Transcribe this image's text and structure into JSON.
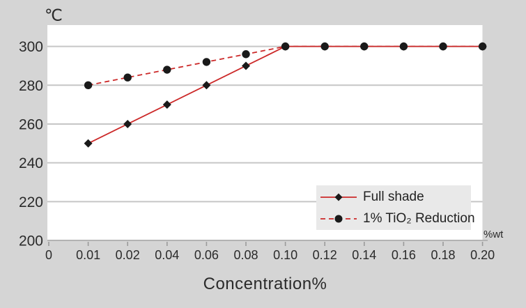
{
  "page": {
    "background_color": "#d5d5d5",
    "plot_background_color": "#ffffff",
    "grid_color": "#c6c6c6",
    "axis_color": "#b3b3b3",
    "tick_color": "#9a9a9a",
    "text_color": "#2a2a2a",
    "legend_background_color": "#e9e9e9"
  },
  "chart_data": {
    "type": "line",
    "title": "",
    "xlabel": "Concentration%",
    "x_axis_unit": "%wt",
    "y_axis_unit": "℃",
    "categories": [
      "0",
      "0.01",
      "0.02",
      "0.04",
      "0.06",
      "0.08",
      "0.10",
      "0.12",
      "0.14",
      "0.16",
      "0.18",
      "0.20"
    ],
    "y_ticks": [
      200,
      220,
      240,
      260,
      280,
      300
    ],
    "ylim": [
      200,
      311
    ],
    "grid": true,
    "legend_position": "inside-bottom-right",
    "series": [
      {
        "name": "Full shade",
        "line_style": "solid",
        "line_color": "#cc2929",
        "marker": "diamond",
        "marker_color": "#1a1a1a",
        "values": [
          null,
          250,
          260,
          270,
          280,
          290,
          300,
          300,
          300,
          300,
          300,
          300
        ]
      },
      {
        "name": "1% TiO₂ Reduction",
        "line_style": "dashed",
        "line_color": "#cc2929",
        "marker": "circle",
        "marker_color": "#1a1a1a",
        "values": [
          null,
          280,
          284,
          288,
          292,
          296,
          300,
          300,
          300,
          300,
          300,
          300
        ]
      }
    ]
  }
}
